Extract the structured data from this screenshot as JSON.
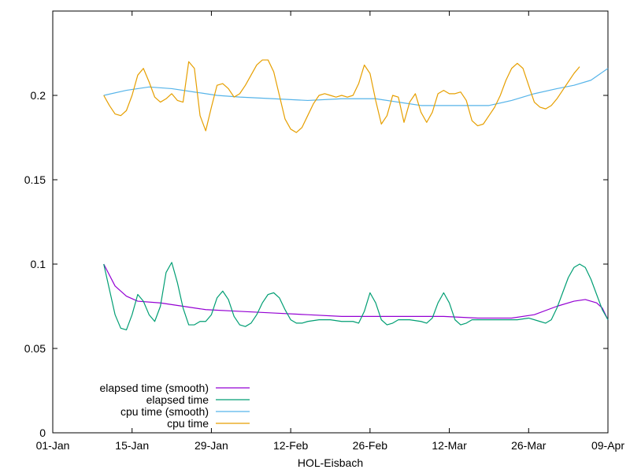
{
  "chart_data": {
    "type": "line",
    "xlabel": "HOL-Eisbach",
    "ylabel": "",
    "xlim": [
      "2023-01-01",
      "2023-04-09"
    ],
    "ylim": [
      0,
      0.25
    ],
    "x_ticks": [
      {
        "date": "2023-01-01",
        "label": "01-Jan"
      },
      {
        "date": "2023-01-15",
        "label": "15-Jan"
      },
      {
        "date": "2023-01-29",
        "label": "29-Jan"
      },
      {
        "date": "2023-02-12",
        "label": "12-Feb"
      },
      {
        "date": "2023-02-26",
        "label": "26-Feb"
      },
      {
        "date": "2023-03-12",
        "label": "12-Mar"
      },
      {
        "date": "2023-03-26",
        "label": "26-Mar"
      },
      {
        "date": "2023-04-09",
        "label": "09-Apr"
      }
    ],
    "y_ticks": [
      {
        "value": 0,
        "label": "0"
      },
      {
        "value": 0.05,
        "label": "0.05"
      },
      {
        "value": 0.1,
        "label": "0.1"
      },
      {
        "value": 0.15,
        "label": "0.15"
      },
      {
        "value": 0.2,
        "label": "0.2"
      }
    ],
    "grid": false,
    "legend_position": "bottom-left",
    "series": [
      {
        "name": "elapsed time (smooth)",
        "color": "#9400d3",
        "points": [
          [
            "2023-01-10",
            0.1
          ],
          [
            "2023-01-12",
            0.087
          ],
          [
            "2023-01-14",
            0.081
          ],
          [
            "2023-01-16",
            0.078
          ],
          [
            "2023-01-20",
            0.077
          ],
          [
            "2023-01-24",
            0.075
          ],
          [
            "2023-01-28",
            0.073
          ],
          [
            "2023-02-03",
            0.072
          ],
          [
            "2023-02-09",
            0.071
          ],
          [
            "2023-02-15",
            0.07
          ],
          [
            "2023-02-21",
            0.069
          ],
          [
            "2023-02-27",
            0.069
          ],
          [
            "2023-03-05",
            0.069
          ],
          [
            "2023-03-11",
            0.069
          ],
          [
            "2023-03-17",
            0.068
          ],
          [
            "2023-03-23",
            0.068
          ],
          [
            "2023-03-27",
            0.07
          ],
          [
            "2023-03-31",
            0.075
          ],
          [
            "2023-04-03",
            0.078
          ],
          [
            "2023-04-05",
            0.079
          ],
          [
            "2023-04-07",
            0.077
          ],
          [
            "2023-04-08",
            0.074
          ],
          [
            "2023-04-09",
            0.067
          ]
        ]
      },
      {
        "name": "elapsed time",
        "color": "#009e73",
        "points": [
          [
            "2023-01-10",
            0.1
          ],
          [
            "2023-01-11",
            0.085
          ],
          [
            "2023-01-12",
            0.07
          ],
          [
            "2023-01-13",
            0.062
          ],
          [
            "2023-01-14",
            0.061
          ],
          [
            "2023-01-15",
            0.07
          ],
          [
            "2023-01-16",
            0.082
          ],
          [
            "2023-01-17",
            0.078
          ],
          [
            "2023-01-18",
            0.07
          ],
          [
            "2023-01-19",
            0.066
          ],
          [
            "2023-01-20",
            0.075
          ],
          [
            "2023-01-21",
            0.095
          ],
          [
            "2023-01-22",
            0.101
          ],
          [
            "2023-01-23",
            0.089
          ],
          [
            "2023-01-24",
            0.074
          ],
          [
            "2023-01-25",
            0.064
          ],
          [
            "2023-01-26",
            0.064
          ],
          [
            "2023-01-27",
            0.066
          ],
          [
            "2023-01-28",
            0.066
          ],
          [
            "2023-01-29",
            0.07
          ],
          [
            "2023-01-30",
            0.08
          ],
          [
            "2023-01-31",
            0.084
          ],
          [
            "2023-02-01",
            0.079
          ],
          [
            "2023-02-02",
            0.069
          ],
          [
            "2023-02-03",
            0.064
          ],
          [
            "2023-02-04",
            0.063
          ],
          [
            "2023-02-05",
            0.065
          ],
          [
            "2023-02-06",
            0.07
          ],
          [
            "2023-02-07",
            0.077
          ],
          [
            "2023-02-08",
            0.082
          ],
          [
            "2023-02-09",
            0.083
          ],
          [
            "2023-02-10",
            0.08
          ],
          [
            "2023-02-11",
            0.073
          ],
          [
            "2023-02-12",
            0.067
          ],
          [
            "2023-02-13",
            0.065
          ],
          [
            "2023-02-14",
            0.065
          ],
          [
            "2023-02-15",
            0.066
          ],
          [
            "2023-02-17",
            0.067
          ],
          [
            "2023-02-19",
            0.067
          ],
          [
            "2023-02-21",
            0.066
          ],
          [
            "2023-02-23",
            0.066
          ],
          [
            "2023-02-24",
            0.065
          ],
          [
            "2023-02-25",
            0.072
          ],
          [
            "2023-02-26",
            0.083
          ],
          [
            "2023-02-27",
            0.077
          ],
          [
            "2023-02-28",
            0.067
          ],
          [
            "2023-03-01",
            0.064
          ],
          [
            "2023-03-02",
            0.065
          ],
          [
            "2023-03-03",
            0.067
          ],
          [
            "2023-03-05",
            0.067
          ],
          [
            "2023-03-07",
            0.066
          ],
          [
            "2023-03-08",
            0.065
          ],
          [
            "2023-03-09",
            0.068
          ],
          [
            "2023-03-10",
            0.077
          ],
          [
            "2023-03-11",
            0.083
          ],
          [
            "2023-03-12",
            0.077
          ],
          [
            "2023-03-13",
            0.067
          ],
          [
            "2023-03-14",
            0.064
          ],
          [
            "2023-03-15",
            0.065
          ],
          [
            "2023-03-16",
            0.067
          ],
          [
            "2023-03-18",
            0.067
          ],
          [
            "2023-03-20",
            0.067
          ],
          [
            "2023-03-22",
            0.067
          ],
          [
            "2023-03-24",
            0.067
          ],
          [
            "2023-03-26",
            0.068
          ],
          [
            "2023-03-28",
            0.066
          ],
          [
            "2023-03-29",
            0.065
          ],
          [
            "2023-03-30",
            0.067
          ],
          [
            "2023-03-31",
            0.074
          ],
          [
            "2023-04-01",
            0.083
          ],
          [
            "2023-04-02",
            0.092
          ],
          [
            "2023-04-03",
            0.098
          ],
          [
            "2023-04-04",
            0.1
          ],
          [
            "2023-04-05",
            0.098
          ],
          [
            "2023-04-06",
            0.091
          ],
          [
            "2023-04-07",
            0.082
          ],
          [
            "2023-04-08",
            0.073
          ],
          [
            "2023-04-09",
            0.067
          ]
        ]
      },
      {
        "name": "cpu time (smooth)",
        "color": "#56b4e9",
        "points": [
          [
            "2023-01-10",
            0.2
          ],
          [
            "2023-01-14",
            0.203
          ],
          [
            "2023-01-18",
            0.205
          ],
          [
            "2023-01-22",
            0.204
          ],
          [
            "2023-01-26",
            0.202
          ],
          [
            "2023-01-30",
            0.2
          ],
          [
            "2023-02-03",
            0.199
          ],
          [
            "2023-02-09",
            0.198
          ],
          [
            "2023-02-15",
            0.197
          ],
          [
            "2023-02-21",
            0.198
          ],
          [
            "2023-02-27",
            0.198
          ],
          [
            "2023-03-03",
            0.196
          ],
          [
            "2023-03-07",
            0.194
          ],
          [
            "2023-03-13",
            0.194
          ],
          [
            "2023-03-19",
            0.194
          ],
          [
            "2023-03-23",
            0.197
          ],
          [
            "2023-03-27",
            0.201
          ],
          [
            "2023-03-31",
            0.204
          ],
          [
            "2023-04-03",
            0.206
          ],
          [
            "2023-04-06",
            0.209
          ],
          [
            "2023-04-09",
            0.216
          ]
        ]
      },
      {
        "name": "cpu time",
        "color": "#e69f00",
        "points": [
          [
            "2023-01-10",
            0.2
          ],
          [
            "2023-01-11",
            0.194
          ],
          [
            "2023-01-12",
            0.189
          ],
          [
            "2023-01-13",
            0.188
          ],
          [
            "2023-01-14",
            0.191
          ],
          [
            "2023-01-15",
            0.2
          ],
          [
            "2023-01-16",
            0.212
          ],
          [
            "2023-01-17",
            0.216
          ],
          [
            "2023-01-18",
            0.208
          ],
          [
            "2023-01-19",
            0.199
          ],
          [
            "2023-01-20",
            0.196
          ],
          [
            "2023-01-21",
            0.198
          ],
          [
            "2023-01-22",
            0.201
          ],
          [
            "2023-01-23",
            0.197
          ],
          [
            "2023-01-24",
            0.196
          ],
          [
            "2023-01-25",
            0.22
          ],
          [
            "2023-01-26",
            0.216
          ],
          [
            "2023-01-27",
            0.188
          ],
          [
            "2023-01-28",
            0.179
          ],
          [
            "2023-01-29",
            0.193
          ],
          [
            "2023-01-30",
            0.206
          ],
          [
            "2023-01-31",
            0.207
          ],
          [
            "2023-02-01",
            0.204
          ],
          [
            "2023-02-02",
            0.199
          ],
          [
            "2023-02-03",
            0.201
          ],
          [
            "2023-02-04",
            0.206
          ],
          [
            "2023-02-05",
            0.212
          ],
          [
            "2023-02-06",
            0.218
          ],
          [
            "2023-02-07",
            0.221
          ],
          [
            "2023-02-08",
            0.221
          ],
          [
            "2023-02-09",
            0.214
          ],
          [
            "2023-02-10",
            0.2
          ],
          [
            "2023-02-11",
            0.186
          ],
          [
            "2023-02-12",
            0.18
          ],
          [
            "2023-02-13",
            0.178
          ],
          [
            "2023-02-14",
            0.181
          ],
          [
            "2023-02-15",
            0.188
          ],
          [
            "2023-02-16",
            0.195
          ],
          [
            "2023-02-17",
            0.2
          ],
          [
            "2023-02-18",
            0.201
          ],
          [
            "2023-02-19",
            0.2
          ],
          [
            "2023-02-20",
            0.199
          ],
          [
            "2023-02-21",
            0.2
          ],
          [
            "2023-02-22",
            0.199
          ],
          [
            "2023-02-23",
            0.2
          ],
          [
            "2023-02-24",
            0.207
          ],
          [
            "2023-02-25",
            0.218
          ],
          [
            "2023-02-26",
            0.213
          ],
          [
            "2023-02-27",
            0.197
          ],
          [
            "2023-02-28",
            0.183
          ],
          [
            "2023-03-01",
            0.188
          ],
          [
            "2023-03-02",
            0.2
          ],
          [
            "2023-03-03",
            0.199
          ],
          [
            "2023-03-04",
            0.184
          ],
          [
            "2023-03-05",
            0.196
          ],
          [
            "2023-03-06",
            0.201
          ],
          [
            "2023-03-07",
            0.19
          ],
          [
            "2023-03-08",
            0.184
          ],
          [
            "2023-03-09",
            0.19
          ],
          [
            "2023-03-10",
            0.201
          ],
          [
            "2023-03-11",
            0.203
          ],
          [
            "2023-03-12",
            0.201
          ],
          [
            "2023-03-13",
            0.201
          ],
          [
            "2023-03-14",
            0.202
          ],
          [
            "2023-03-15",
            0.197
          ],
          [
            "2023-03-16",
            0.185
          ],
          [
            "2023-03-17",
            0.182
          ],
          [
            "2023-03-18",
            0.183
          ],
          [
            "2023-03-19",
            0.188
          ],
          [
            "2023-03-20",
            0.193
          ],
          [
            "2023-03-21",
            0.2
          ],
          [
            "2023-03-22",
            0.209
          ],
          [
            "2023-03-23",
            0.216
          ],
          [
            "2023-03-24",
            0.219
          ],
          [
            "2023-03-25",
            0.216
          ],
          [
            "2023-03-26",
            0.206
          ],
          [
            "2023-03-27",
            0.196
          ],
          [
            "2023-03-28",
            0.193
          ],
          [
            "2023-03-29",
            0.192
          ],
          [
            "2023-03-30",
            0.194
          ],
          [
            "2023-03-31",
            0.198
          ],
          [
            "2023-04-01",
            0.203
          ],
          [
            "2023-04-02",
            0.208
          ],
          [
            "2023-04-03",
            0.213
          ],
          [
            "2023-04-04",
            0.217
          ]
        ]
      }
    ]
  }
}
